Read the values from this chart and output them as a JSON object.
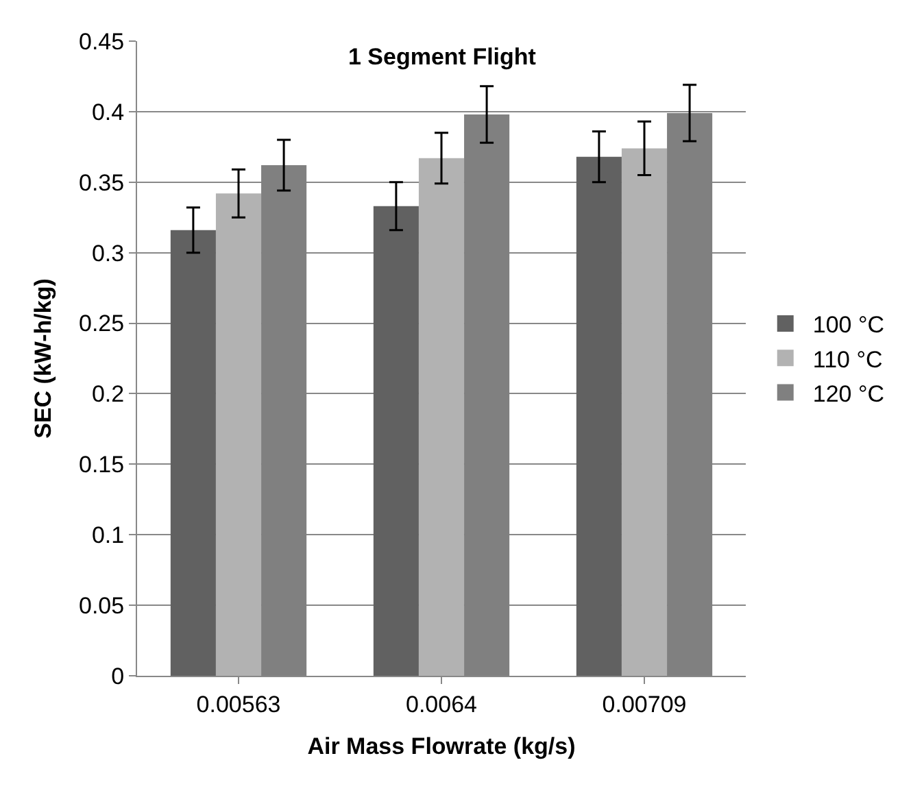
{
  "chart_data": {
    "type": "bar",
    "title": "1 Segment Flight",
    "xlabel": "Air Mass Flowrate (kg/s)",
    "ylabel": "SEC (kW-h/kg)",
    "categories": [
      "0.00563",
      "0.0064",
      "0.00709"
    ],
    "series": [
      {
        "name": "100 °C",
        "color": "#616161",
        "values": [
          0.316,
          0.333,
          0.368
        ],
        "errors": [
          0.016,
          0.017,
          0.018
        ]
      },
      {
        "name": "110 °C",
        "color": "#b2b2b2",
        "values": [
          0.342,
          0.367,
          0.374
        ],
        "errors": [
          0.017,
          0.018,
          0.019
        ]
      },
      {
        "name": "120 °C",
        "color": "#808080",
        "values": [
          0.362,
          0.398,
          0.399
        ],
        "errors": [
          0.018,
          0.02,
          0.02
        ]
      }
    ],
    "ylim": [
      0,
      0.45
    ],
    "yticks": [
      0,
      0.05,
      0.1,
      0.15,
      0.2,
      0.25,
      0.3,
      0.35,
      0.4,
      0.45
    ],
    "grid": "y",
    "legend": "right"
  }
}
